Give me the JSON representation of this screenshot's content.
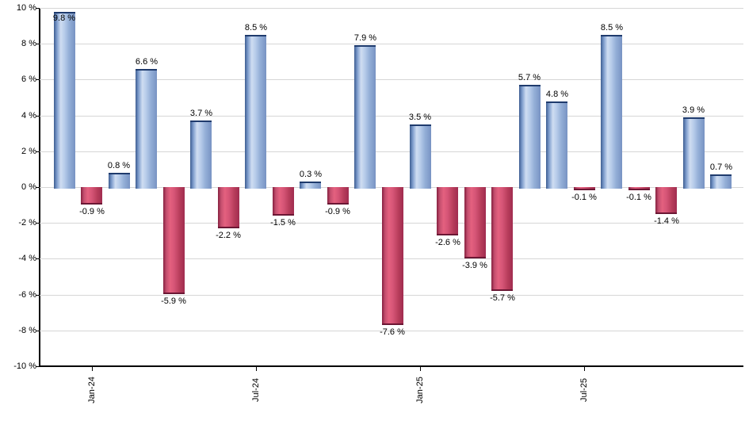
{
  "chart_data": {
    "type": "bar",
    "title": "",
    "xlabel": "",
    "ylabel": "",
    "ylim": [
      -10,
      10
    ],
    "y_tick_step": 2,
    "grid": true,
    "legend": false,
    "values": [
      9.8,
      -0.9,
      0.8,
      6.6,
      -5.9,
      3.7,
      -2.2,
      8.5,
      -1.5,
      0.3,
      -0.9,
      7.9,
      -7.6,
      3.5,
      -2.6,
      -3.9,
      -5.7,
      5.7,
      4.8,
      -0.1,
      8.5,
      -0.1,
      -1.4,
      3.9,
      0.7
    ],
    "labels": [
      "9.8 %",
      "-0.9 %",
      "0.8 %",
      "6.6 %",
      "-5.9 %",
      "3.7 %",
      "-2.2 %",
      "8.5 %",
      "-1.5 %",
      "0.3 %",
      "-0.9 %",
      "7.9 %",
      "-7.6 %",
      "3.5 %",
      "-2.6 %",
      "-3.9 %",
      "-5.7 %",
      "5.7 %",
      "4.8 %",
      "-0.1 %",
      "8.5 %",
      "-0.1 %",
      "-1.4 %",
      "3.9 %",
      "0.7 %"
    ],
    "x_ticks": [
      {
        "index": 1,
        "label": "Jan-24"
      },
      {
        "index": 7,
        "label": "Jul-24"
      },
      {
        "index": 13,
        "label": "Jan-25"
      },
      {
        "index": 19,
        "label": "Jul-25"
      }
    ],
    "y_ticks": [
      {
        "value": 10,
        "label": "10 %"
      },
      {
        "value": 8,
        "label": "8 %"
      },
      {
        "value": 6,
        "label": "6 %"
      },
      {
        "value": 4,
        "label": "4 %"
      },
      {
        "value": 2,
        "label": "2 %"
      },
      {
        "value": 0,
        "label": "0 %"
      },
      {
        "value": -2,
        "label": "-2 %"
      },
      {
        "value": -4,
        "label": "-4 %"
      },
      {
        "value": -6,
        "label": "-6 %"
      },
      {
        "value": -8,
        "label": "-8 %"
      },
      {
        "value": -10,
        "label": "-10 %"
      }
    ],
    "colors": {
      "positive_fill": "#a9c3e6",
      "positive_edge": "#1f3b6d",
      "negative_fill": "#d8537a",
      "negative_edge": "#6b1734",
      "gridline": "#d6d6d6",
      "axis": "#000000",
      "background": "#ffffff"
    }
  }
}
